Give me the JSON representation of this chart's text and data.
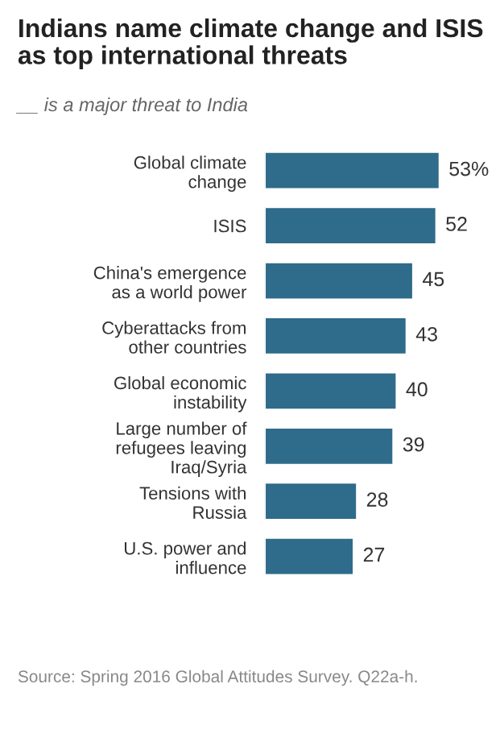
{
  "chart_data": {
    "type": "bar",
    "orientation": "horizontal",
    "title": "Indians name climate change and ISIS\nas top international threats",
    "subtitle": "__ is a major threat to India",
    "categories": [
      "Global climate\nchange",
      "ISIS",
      "China's emergence\nas a world power",
      "Cyberattacks from\nother countries",
      "Global economic\ninstability",
      "Large number of\nrefugees leaving\nIraq/Syria",
      "Tensions with\nRussia",
      "U.S. power and\ninfluence"
    ],
    "values": [
      53,
      52,
      45,
      43,
      40,
      39,
      28,
      27
    ],
    "value_labels": [
      "53%",
      "52",
      "45",
      "43",
      "40",
      "39",
      "28",
      "27"
    ],
    "color": "#2f6b8a",
    "annotations": [
      "Source: Spring 2016 Global Attitudes Survey. Q22a-h."
    ]
  }
}
